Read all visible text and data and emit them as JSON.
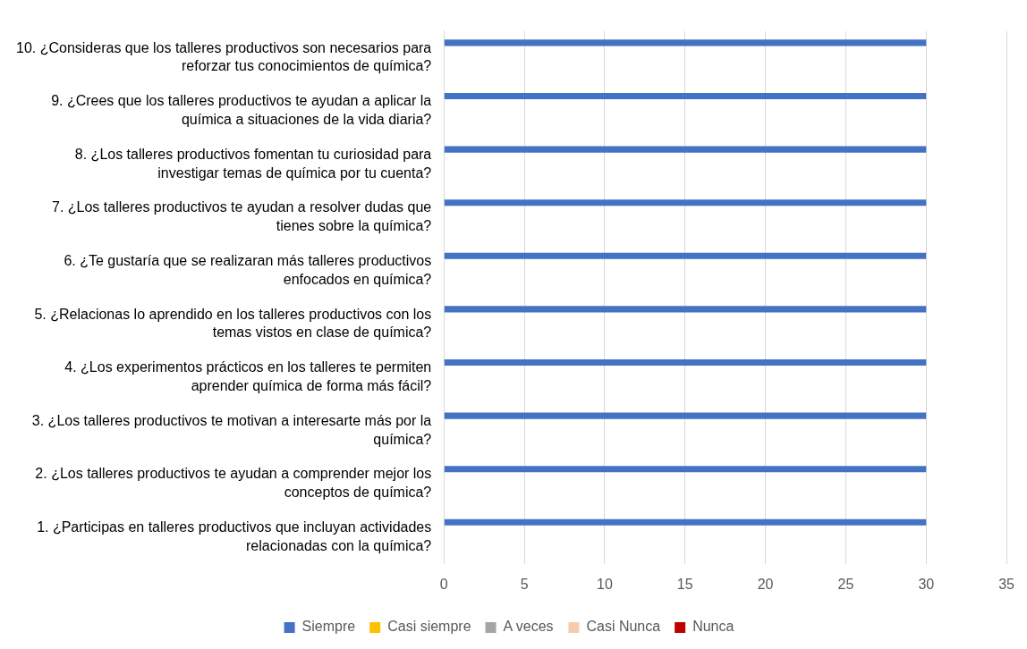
{
  "chart_data": {
    "type": "bar",
    "orientation": "horizontal",
    "categories": [
      "10. ¿Consideras que los talleres productivos son necesarios para reforzar tus conocimientos de química?",
      "9. ¿Crees que los talleres productivos te ayudan a aplicar la química a situaciones de la vida diaria?",
      "8. ¿Los talleres productivos fomentan tu curiosidad para investigar temas de química por tu cuenta?",
      "7. ¿Los talleres productivos te ayudan a resolver dudas que tienes sobre la química?",
      "6. ¿Te gustaría que se realizaran más talleres productivos enfocados en química?",
      "5. ¿Relacionas lo aprendido en los talleres productivos con los temas vistos en clase de química?",
      "4. ¿Los experimentos prácticos en los talleres te permiten aprender química de forma más fácil?",
      "3. ¿Los talleres productivos te motivan a interesarte más por la química?",
      "2. ¿Los talleres productivos te ayudan a comprender mejor los conceptos de química?",
      "1. ¿Participas en talleres productivos que incluyan actividades relacionadas con la química?"
    ],
    "series": [
      {
        "name": "Siempre",
        "color": "#4472c4",
        "values": [
          30,
          30,
          30,
          30,
          30,
          30,
          30,
          30,
          30,
          30
        ]
      },
      {
        "name": "Casi siempre",
        "color": "#ffc000",
        "values": [
          0,
          0,
          0,
          0,
          0,
          0,
          0,
          0,
          0,
          0
        ]
      },
      {
        "name": "A veces",
        "color": "#a5a5a5",
        "values": [
          0,
          0,
          0,
          0,
          0,
          0,
          0,
          0,
          0,
          0
        ]
      },
      {
        "name": "Casi Nunca",
        "color": "#f8cbad",
        "values": [
          0,
          0,
          0,
          0,
          0,
          0,
          0,
          0,
          0,
          0
        ]
      },
      {
        "name": "Nunca",
        "color": "#c00000",
        "values": [
          0,
          0,
          0,
          0,
          0,
          0,
          0,
          0,
          0,
          0
        ]
      }
    ],
    "xlim": [
      0,
      35
    ],
    "xticks": [
      0,
      5,
      10,
      15,
      20,
      25,
      30,
      35
    ],
    "grid": "x",
    "legend": "bottom"
  }
}
